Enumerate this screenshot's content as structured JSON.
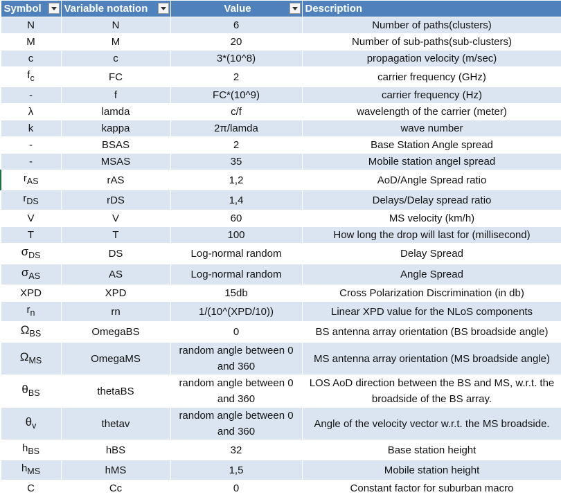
{
  "headers": [
    "Symbol",
    "Variable notation",
    "Value",
    "Description"
  ],
  "rows": [
    {
      "sym": "N",
      "var": "N",
      "val": "6",
      "desc": "Number of paths(clusters)"
    },
    {
      "sym": "M",
      "var": "M",
      "val": "20",
      "desc": "Number of sub-paths(sub-clusters)"
    },
    {
      "sym": "c",
      "var": "c",
      "val": "3*(10^8)",
      "desc": "propagation velocity (m/sec)"
    },
    {
      "sym": "f",
      "sub": "c",
      "var": "FC",
      "val": "2",
      "desc": "carrier frequency (GHz)"
    },
    {
      "sym": "-",
      "var": "f",
      "val": "FC*(10^9)",
      "desc": "carrier frequency (Hz)"
    },
    {
      "sym": "λ",
      "var": "lamda",
      "val": "c/f",
      "desc": "wavelength of the carrier (meter)"
    },
    {
      "sym": "k",
      "var": "kappa",
      "val": "2π/lamda",
      "desc": "wave number"
    },
    {
      "sym": "-",
      "var": "BSAS",
      "val": "2",
      "desc": "Base Station Angle spread"
    },
    {
      "sym": "-",
      "var": "MSAS",
      "val": "35",
      "desc": "Mobile station angel spread"
    },
    {
      "sym": "r",
      "sub": "AS",
      "var": "rAS",
      "val": "1,2",
      "desc": "AoD/Angle Spread ratio"
    },
    {
      "sym": "r",
      "sub": "DS",
      "var": "rDS",
      "val": "1,4",
      "desc": "Delays/Delay spread ratio"
    },
    {
      "sym": "V",
      "var": "V",
      "val": "60",
      "desc": "MS velocity (km/h)"
    },
    {
      "sym": "T",
      "var": "T",
      "val": "100",
      "desc": "How long the drop will last for (millisecond)"
    },
    {
      "sym": "σ",
      "sub": "DS",
      "var": "DS",
      "val": "Log-normal random",
      "desc": "Delay Spread"
    },
    {
      "sym": "σ",
      "sub": "AS",
      "var": "AS",
      "val": "Log-normal random",
      "desc": "Angle Spread"
    },
    {
      "sym": "XPD",
      "var": "XPD",
      "val": "15db",
      "desc": "Cross Polarization Discrimination (in db)"
    },
    {
      "sym": "r",
      "sub": "n",
      "var": "rn",
      "val": "1/(10^(XPD/10))",
      "desc": "Linear XPD value for the NLoS components"
    },
    {
      "sym": "Ω",
      "sub": "BS",
      "var": "OmegaBS",
      "val": "0",
      "desc": "BS antenna array orientation (BS broadside angle)"
    },
    {
      "sym": "Ω",
      "sub": "MS",
      "var": "OmegaMS",
      "val": "random angle between 0 and 360",
      "desc": "MS antenna array orientation (MS broadside angle)"
    },
    {
      "sym": "θ",
      "sub": "BS",
      "var": "thetaBS",
      "val": "random angle between 0 and 360",
      "desc": "LOS AoD direction between the BS and MS, w.r.t. the broadside of the BS array."
    },
    {
      "sym": "θ",
      "sub": "v",
      "var": "thetav",
      "val": "random angle between 0 and 360",
      "desc": "Angle of the velocity vector w.r.t. the MS broadside."
    },
    {
      "sym": "h",
      "sub": "BS",
      "var": "hBS",
      "val": "32",
      "desc": "Base station height"
    },
    {
      "sym": "h",
      "sub": "MS",
      "var": "hMS",
      "val": "1,5",
      "desc": "Mobile station height"
    },
    {
      "sym": "C",
      "var": "Cc",
      "val": "0",
      "desc": "Constant factor for suburban macro"
    }
  ],
  "colors": {
    "header_bg": "#4f81bd",
    "band": "#dbe5f1",
    "white": "#ffffff"
  }
}
